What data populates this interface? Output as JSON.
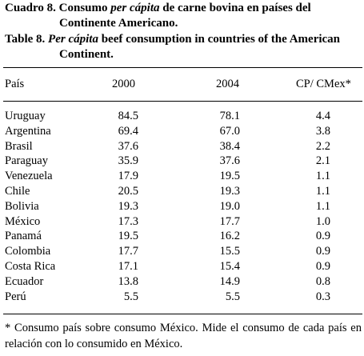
{
  "caption_es": {
    "label": "Cuadro 8.",
    "pre": "Consumo ",
    "italic": "per cápita",
    "post": " de carne bovina en países del",
    "line2": "Continente Americano."
  },
  "caption_en": {
    "label": "Table 8.",
    "italic": "Per cápita",
    "post": " beef consumption in countries of the American",
    "line2": "Continent."
  },
  "chart_data": {
    "type": "table",
    "columns": [
      "País",
      "2000",
      "2004",
      "CP/ CMex*"
    ],
    "rows": [
      {
        "country": "Uruguay",
        "v2000": "84.5",
        "v2004": "78.1",
        "ratio": "4.4"
      },
      {
        "country": "Argentina",
        "v2000": "69.4",
        "v2004": "67.0",
        "ratio": "3.8"
      },
      {
        "country": "Brasil",
        "v2000": "37.6",
        "v2004": "38.4",
        "ratio": "2.2"
      },
      {
        "country": "Paraguay",
        "v2000": "35.9",
        "v2004": "37.6",
        "ratio": "2.1"
      },
      {
        "country": "Venezuela",
        "v2000": "17.9",
        "v2004": "19.5",
        "ratio": "1.1"
      },
      {
        "country": "Chile",
        "v2000": "20.5",
        "v2004": "19.3",
        "ratio": "1.1"
      },
      {
        "country": "Bolivia",
        "v2000": "19.3",
        "v2004": "19.0",
        "ratio": "1.1"
      },
      {
        "country": "México",
        "v2000": "17.3",
        "v2004": "17.7",
        "ratio": "1.0"
      },
      {
        "country": "Panamá",
        "v2000": "19.5",
        "v2004": "16.2",
        "ratio": "0.9"
      },
      {
        "country": "Colombia",
        "v2000": "17.7",
        "v2004": "15.5",
        "ratio": "0.9"
      },
      {
        "country": "Costa Rica",
        "v2000": "17.1",
        "v2004": "15.4",
        "ratio": "0.9"
      },
      {
        "country": "Ecuador",
        "v2000": "13.8",
        "v2004": "14.9",
        "ratio": "0.8"
      },
      {
        "country": "Perú",
        "v2000": "5.5",
        "v2004": "5.5",
        "ratio": "0.3"
      }
    ]
  },
  "footnote": "* Consumo país sobre consumo México. Mide el consumo de cada país en relación con lo consumido en México."
}
